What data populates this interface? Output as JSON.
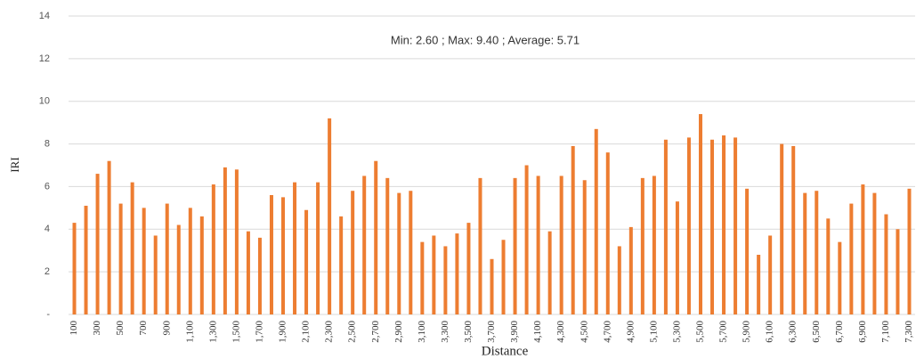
{
  "chart_data": {
    "type": "bar",
    "annotation": "Min: 2.60 ; Max: 9.40 ; Average: 5.71",
    "x_label": "Distance",
    "y_label": "IRI",
    "categories": [
      "100",
      null,
      "300",
      null,
      "500",
      null,
      "700",
      null,
      "900",
      null,
      "1,100",
      null,
      "1,300",
      null,
      "1,500",
      null,
      "1,700",
      null,
      "1,900",
      null,
      "2,100",
      null,
      "2,300",
      null,
      "2,500",
      null,
      "2,700",
      null,
      "2,900",
      null,
      "3,100",
      null,
      "3,300",
      null,
      "3,500",
      null,
      "3,700",
      null,
      "3,900",
      null,
      "4,100",
      null,
      "4,300",
      null,
      "4,500",
      null,
      "4,700",
      null,
      "4,900",
      null,
      "5,100",
      null,
      "5,300",
      null,
      "5,500",
      null,
      "5,700",
      null,
      "5,900",
      null,
      "6,100",
      null,
      "6,300",
      null,
      "6,500",
      null,
      "6,700",
      null,
      "6,900",
      null,
      "7,100",
      null,
      "7,300"
    ],
    "values": [
      4.3,
      5.1,
      6.6,
      7.2,
      5.2,
      6.2,
      5.0,
      3.7,
      5.2,
      4.2,
      5.0,
      4.6,
      6.1,
      6.9,
      6.8,
      3.9,
      3.6,
      5.6,
      5.5,
      6.2,
      4.9,
      6.2,
      9.2,
      4.6,
      5.8,
      6.5,
      7.2,
      6.4,
      5.7,
      5.8,
      3.4,
      3.7,
      3.2,
      3.8,
      4.3,
      6.4,
      2.6,
      3.5,
      6.4,
      7.0,
      6.5,
      3.9,
      6.5,
      7.9,
      6.3,
      8.7,
      7.6,
      3.2,
      4.1,
      6.4,
      6.5,
      8.2,
      5.3,
      8.3,
      9.4,
      8.2,
      8.4,
      8.3,
      5.9,
      2.8,
      3.7,
      8.0,
      7.9,
      5.7,
      5.8,
      4.5,
      3.4,
      5.2,
      6.1,
      5.7,
      4.7,
      4.0,
      5.9
    ],
    "color": "#ed7d31",
    "ylim": [
      0,
      14
    ],
    "yticks": [
      {
        "value": 0,
        "label": "-"
      },
      2,
      4,
      6,
      8,
      10,
      12,
      14
    ],
    "grid": true
  }
}
